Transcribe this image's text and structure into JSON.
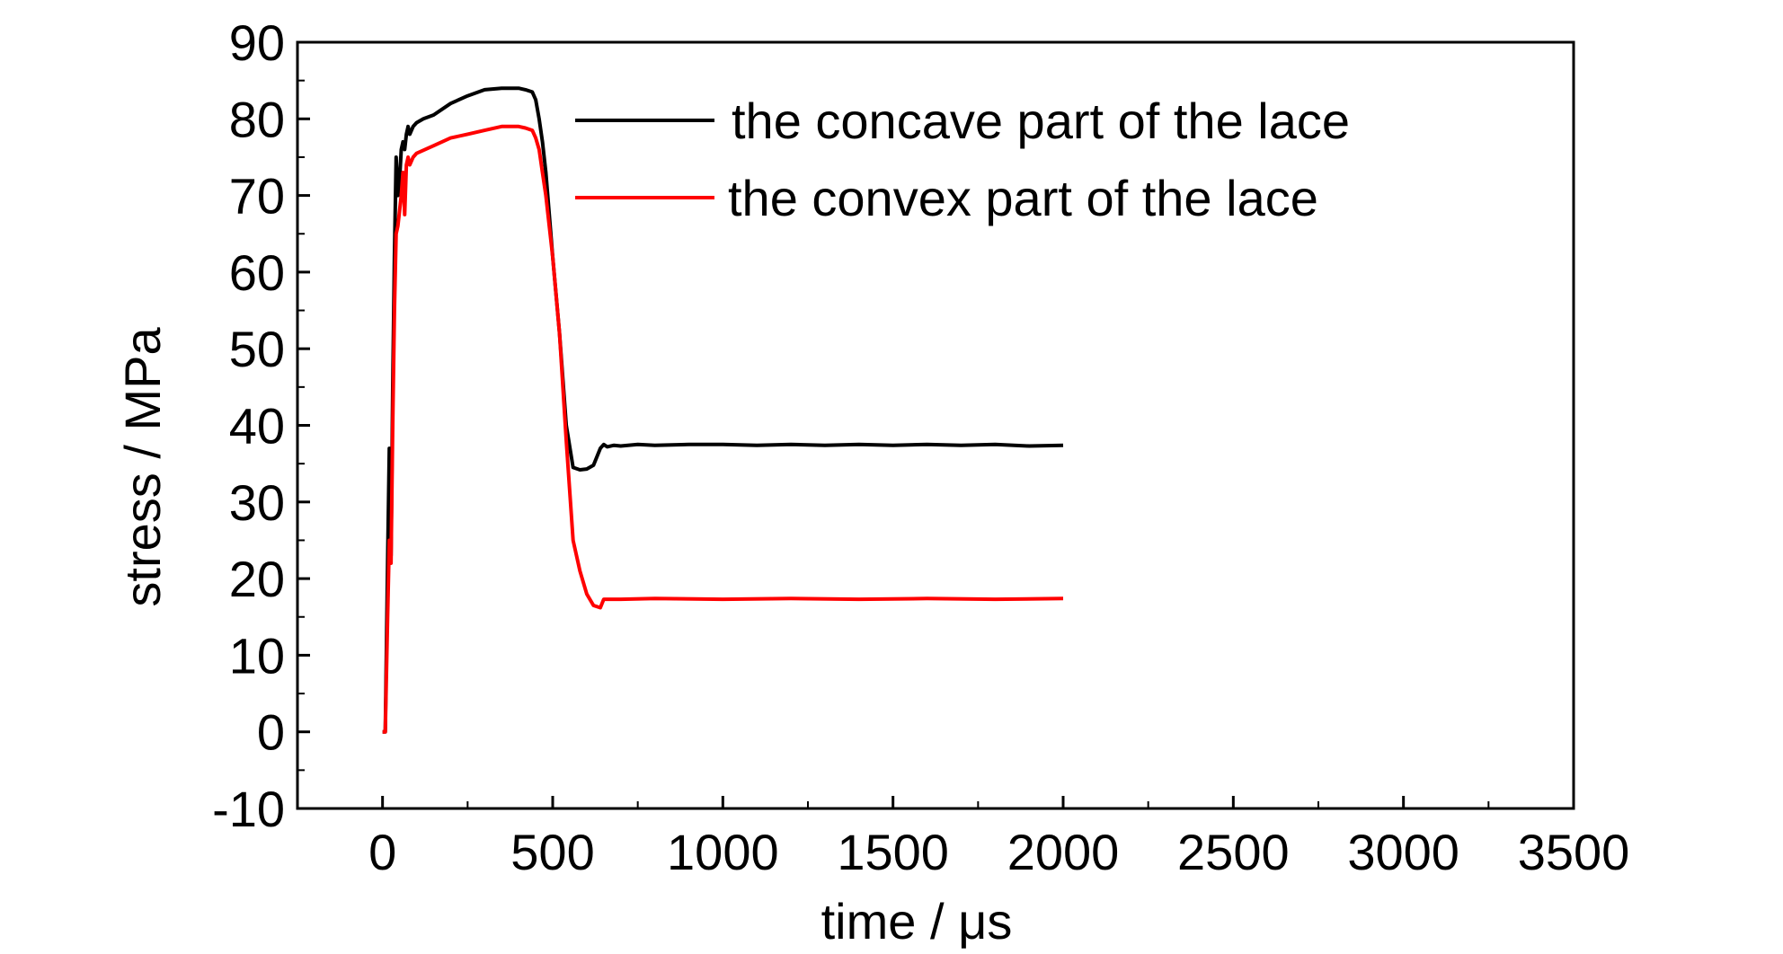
{
  "chart_data": {
    "type": "line",
    "title": "",
    "xlabel": "time / μs",
    "ylabel": "stress / MPa",
    "xlim": [
      -250,
      3500
    ],
    "ylim": [
      -10,
      90
    ],
    "xticks": [
      0,
      500,
      1000,
      1500,
      2000,
      2500,
      3000,
      3500
    ],
    "yticks": [
      -10,
      0,
      10,
      20,
      30,
      40,
      50,
      60,
      70,
      80,
      90
    ],
    "xtick_labels": [
      "0",
      "500",
      "1000",
      "1500",
      "2000",
      "2500",
      "3000",
      "3500"
    ],
    "ytick_labels": [
      "-10",
      "0",
      "10",
      "20",
      "30",
      "40",
      "50",
      "60",
      "70",
      "80",
      "90"
    ],
    "grid": false,
    "legend_position": "top-center",
    "series": [
      {
        "name": "the concave part of the lace",
        "color": "#000000",
        "x": [
          0,
          8,
          15,
          20,
          25,
          30,
          35,
          40,
          45,
          50,
          55,
          60,
          65,
          70,
          75,
          80,
          90,
          100,
          120,
          150,
          200,
          250,
          300,
          350,
          400,
          420,
          440,
          450,
          460,
          470,
          480,
          500,
          520,
          540,
          560,
          580,
          600,
          620,
          640,
          650,
          660,
          680,
          700,
          750,
          800,
          900,
          1000,
          1100,
          1200,
          1300,
          1400,
          1500,
          1600,
          1700,
          1800,
          1900,
          2000
        ],
        "y": [
          0,
          0,
          22,
          37,
          23,
          45,
          62,
          75,
          70,
          72,
          76,
          77,
          76,
          78,
          79,
          78,
          79,
          79.5,
          80,
          80.5,
          82,
          83,
          83.8,
          84,
          84,
          83.8,
          83.5,
          82.5,
          80,
          77,
          73,
          62,
          52,
          40,
          34.5,
          34.2,
          34.3,
          34.8,
          37,
          37.5,
          37.2,
          37.4,
          37.3,
          37.5,
          37.4,
          37.5,
          37.5,
          37.4,
          37.5,
          37.4,
          37.5,
          37.4,
          37.5,
          37.4,
          37.5,
          37.3,
          37.4
        ]
      },
      {
        "name": "the convex part of the lace",
        "color": "#ff0000",
        "x": [
          0,
          8,
          15,
          20,
          25,
          30,
          35,
          40,
          45,
          50,
          55,
          60,
          65,
          70,
          75,
          80,
          90,
          100,
          150,
          200,
          250,
          300,
          350,
          400,
          420,
          440,
          450,
          460,
          470,
          480,
          500,
          520,
          540,
          560,
          580,
          600,
          620,
          640,
          650,
          700,
          800,
          1000,
          1200,
          1400,
          1600,
          1800,
          2000
        ],
        "y": [
          0,
          0,
          15,
          25,
          22,
          40,
          55,
          65,
          66,
          68,
          70,
          73,
          67.5,
          74,
          75,
          74,
          75,
          75.5,
          76.5,
          77.5,
          78,
          78.5,
          79,
          79,
          78.8,
          78.5,
          77.5,
          76,
          73,
          70,
          62,
          52,
          38,
          25,
          21,
          18,
          16.5,
          16.2,
          17.3,
          17.3,
          17.4,
          17.3,
          17.4,
          17.3,
          17.4,
          17.3,
          17.4
        ]
      }
    ]
  }
}
